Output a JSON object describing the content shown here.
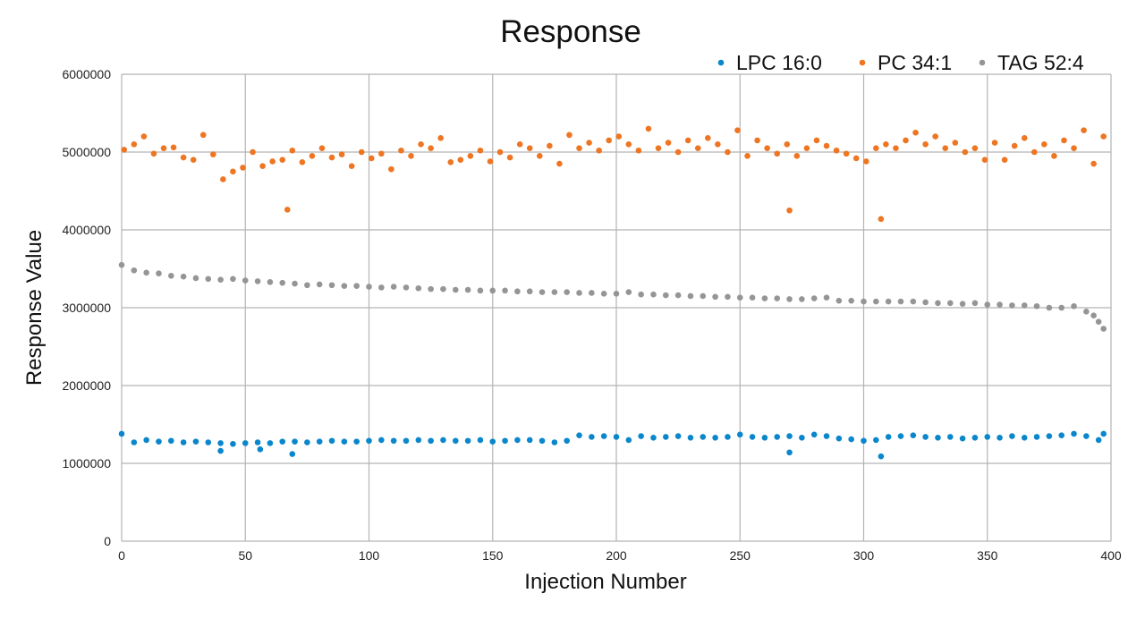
{
  "chart_data": {
    "type": "scatter",
    "title": "Response",
    "xlabel": "Injection Number",
    "ylabel": "Response Value",
    "xlim": [
      0,
      400
    ],
    "ylim": [
      0,
      6000000
    ],
    "xticks": [
      "0",
      "50",
      "100",
      "150",
      "200",
      "250",
      "300",
      "350",
      "400"
    ],
    "yticks": [
      "0",
      "1000000",
      "2000000",
      "3000000",
      "4000000",
      "5000000",
      "6000000"
    ],
    "grid": true,
    "legend_position": "top-right",
    "series": [
      {
        "name": "LPC 16:0",
        "color": "#0a87cc",
        "points": [
          [
            0,
            1380000.0
          ],
          [
            5,
            1270000.0
          ],
          [
            10,
            1300000.0
          ],
          [
            15,
            1280000.0
          ],
          [
            20,
            1290000.0
          ],
          [
            25,
            1270000.0
          ],
          [
            30,
            1280000.0
          ],
          [
            35,
            1270000.0
          ],
          [
            40,
            1260000.0
          ],
          [
            45,
            1250000.0
          ],
          [
            50,
            1260000.0
          ],
          [
            55,
            1270000.0
          ],
          [
            60,
            1260000.0
          ],
          [
            65,
            1280000.0
          ],
          [
            70,
            1280000.0
          ],
          [
            75,
            1270000.0
          ],
          [
            80,
            1280000.0
          ],
          [
            85,
            1290000.0
          ],
          [
            90,
            1280000.0
          ],
          [
            95,
            1280000.0
          ],
          [
            100,
            1290000.0
          ],
          [
            105,
            1300000.0
          ],
          [
            110,
            1290000.0
          ],
          [
            115,
            1290000.0
          ],
          [
            120,
            1300000.0
          ],
          [
            125,
            1290000.0
          ],
          [
            130,
            1300000.0
          ],
          [
            135,
            1290000.0
          ],
          [
            140,
            1290000.0
          ],
          [
            145,
            1300000.0
          ],
          [
            150,
            1280000.0
          ],
          [
            155,
            1290000.0
          ],
          [
            160,
            1300000.0
          ],
          [
            165,
            1300000.0
          ],
          [
            170,
            1290000.0
          ],
          [
            175,
            1270000.0
          ],
          [
            180,
            1290000.0
          ],
          [
            185,
            1360000.0
          ],
          [
            190,
            1340000.0
          ],
          [
            195,
            1350000.0
          ],
          [
            200,
            1340000.0
          ],
          [
            205,
            1300000.0
          ],
          [
            210,
            1350000.0
          ],
          [
            215,
            1330000.0
          ],
          [
            220,
            1340000.0
          ],
          [
            225,
            1350000.0
          ],
          [
            230,
            1330000.0
          ],
          [
            235,
            1340000.0
          ],
          [
            240,
            1330000.0
          ],
          [
            245,
            1340000.0
          ],
          [
            250,
            1370000.0
          ],
          [
            255,
            1340000.0
          ],
          [
            260,
            1330000.0
          ],
          [
            265,
            1340000.0
          ],
          [
            270,
            1350000.0
          ],
          [
            275,
            1330000.0
          ],
          [
            280,
            1370000.0
          ],
          [
            285,
            1350000.0
          ],
          [
            290,
            1320000.0
          ],
          [
            295,
            1310000.0
          ],
          [
            300,
            1290000.0
          ],
          [
            305,
            1300000.0
          ],
          [
            310,
            1340000.0
          ],
          [
            315,
            1350000.0
          ],
          [
            320,
            1360000.0
          ],
          [
            325,
            1340000.0
          ],
          [
            330,
            1330000.0
          ],
          [
            335,
            1340000.0
          ],
          [
            340,
            1320000.0
          ],
          [
            345,
            1330000.0
          ],
          [
            350,
            1340000.0
          ],
          [
            355,
            1330000.0
          ],
          [
            360,
            1350000.0
          ],
          [
            365,
            1330000.0
          ],
          [
            370,
            1340000.0
          ],
          [
            375,
            1350000.0
          ],
          [
            380,
            1360000.0
          ],
          [
            385,
            1380000.0
          ],
          [
            390,
            1350000.0
          ],
          [
            395,
            1300000.0
          ],
          [
            397,
            1380000.0
          ],
          [
            40,
            1160000.0
          ],
          [
            56,
            1180000.0
          ],
          [
            69,
            1120000.0
          ],
          [
            270,
            1140000.0
          ],
          [
            307,
            1090000.0
          ]
        ]
      },
      {
        "name": "PC 34:1",
        "color": "#ee7623",
        "points": [
          [
            1,
            5030000.0
          ],
          [
            5,
            5100000.0
          ],
          [
            9,
            5200000.0
          ],
          [
            13,
            4980000.0
          ],
          [
            17,
            5050000.0
          ],
          [
            21,
            5060000.0
          ],
          [
            25,
            4930000.0
          ],
          [
            29,
            4900000.0
          ],
          [
            33,
            5220000.0
          ],
          [
            37,
            4970000.0
          ],
          [
            41,
            4650000.0
          ],
          [
            45,
            4750000.0
          ],
          [
            49,
            4800000.0
          ],
          [
            53,
            5000000.0
          ],
          [
            57,
            4820000.0
          ],
          [
            61,
            4880000.0
          ],
          [
            65,
            4900000.0
          ],
          [
            69,
            5020000.0
          ],
          [
            73,
            4870000.0
          ],
          [
            77,
            4950000.0
          ],
          [
            81,
            5050000.0
          ],
          [
            85,
            4930000.0
          ],
          [
            89,
            4970000.0
          ],
          [
            93,
            4820000.0
          ],
          [
            97,
            5000000.0
          ],
          [
            101,
            4920000.0
          ],
          [
            105,
            4980000.0
          ],
          [
            109,
            4780000.0
          ],
          [
            113,
            5020000.0
          ],
          [
            117,
            4950000.0
          ],
          [
            121,
            5100000.0
          ],
          [
            125,
            5050000.0
          ],
          [
            129,
            5180000.0
          ],
          [
            133,
            4870000.0
          ],
          [
            137,
            4900000.0
          ],
          [
            141,
            4950000.0
          ],
          [
            145,
            5020000.0
          ],
          [
            149,
            4880000.0
          ],
          [
            153,
            5000000.0
          ],
          [
            157,
            4930000.0
          ],
          [
            161,
            5100000.0
          ],
          [
            165,
            5050000.0
          ],
          [
            169,
            4950000.0
          ],
          [
            173,
            5080000.0
          ],
          [
            177,
            4850000.0
          ],
          [
            181,
            5220000.0
          ],
          [
            185,
            5050000.0
          ],
          [
            189,
            5120000.0
          ],
          [
            193,
            5020000.0
          ],
          [
            197,
            5150000.0
          ],
          [
            201,
            5200000.0
          ],
          [
            205,
            5100000.0
          ],
          [
            209,
            5020000.0
          ],
          [
            213,
            5300000.0
          ],
          [
            217,
            5050000.0
          ],
          [
            221,
            5120000.0
          ],
          [
            225,
            5000000.0
          ],
          [
            229,
            5150000.0
          ],
          [
            233,
            5050000.0
          ],
          [
            237,
            5180000.0
          ],
          [
            241,
            5100000.0
          ],
          [
            245,
            5000000.0
          ],
          [
            249,
            5280000.0
          ],
          [
            253,
            4950000.0
          ],
          [
            257,
            5150000.0
          ],
          [
            261,
            5050000.0
          ],
          [
            265,
            4980000.0
          ],
          [
            269,
            5100000.0
          ],
          [
            273,
            4950000.0
          ],
          [
            277,
            5050000.0
          ],
          [
            281,
            5150000.0
          ],
          [
            285,
            5080000.0
          ],
          [
            289,
            5020000.0
          ],
          [
            293,
            4980000.0
          ],
          [
            297,
            4920000.0
          ],
          [
            301,
            4880000.0
          ],
          [
            305,
            5050000.0
          ],
          [
            309,
            5100000.0
          ],
          [
            313,
            5050000.0
          ],
          [
            317,
            5150000.0
          ],
          [
            321,
            5250000.0
          ],
          [
            325,
            5100000.0
          ],
          [
            329,
            5200000.0
          ],
          [
            333,
            5050000.0
          ],
          [
            337,
            5120000.0
          ],
          [
            341,
            5000000.0
          ],
          [
            345,
            5050000.0
          ],
          [
            349,
            4900000.0
          ],
          [
            353,
            5120000.0
          ],
          [
            357,
            4900000.0
          ],
          [
            361,
            5080000.0
          ],
          [
            365,
            5180000.0
          ],
          [
            369,
            5000000.0
          ],
          [
            373,
            5100000.0
          ],
          [
            377,
            4950000.0
          ],
          [
            381,
            5150000.0
          ],
          [
            385,
            5050000.0
          ],
          [
            389,
            5280000.0
          ],
          [
            393,
            4850000.0
          ],
          [
            397,
            5200000.0
          ],
          [
            67,
            4260000.0
          ],
          [
            270,
            4250000.0
          ],
          [
            307,
            4140000.0
          ]
        ]
      },
      {
        "name": "TAG 52:4",
        "color": "#959595",
        "points": [
          [
            0,
            3550000.0
          ],
          [
            5,
            3480000.0
          ],
          [
            10,
            3450000.0
          ],
          [
            15,
            3440000.0
          ],
          [
            20,
            3410000.0
          ],
          [
            25,
            3400000.0
          ],
          [
            30,
            3380000.0
          ],
          [
            35,
            3370000.0
          ],
          [
            40,
            3360000.0
          ],
          [
            45,
            3370000.0
          ],
          [
            50,
            3350000.0
          ],
          [
            55,
            3340000.0
          ],
          [
            60,
            3330000.0
          ],
          [
            65,
            3320000.0
          ],
          [
            70,
            3310000.0
          ],
          [
            75,
            3290000.0
          ],
          [
            80,
            3300000.0
          ],
          [
            85,
            3290000.0
          ],
          [
            90,
            3280000.0
          ],
          [
            95,
            3280000.0
          ],
          [
            100,
            3270000.0
          ],
          [
            105,
            3260000.0
          ],
          [
            110,
            3270000.0
          ],
          [
            115,
            3260000.0
          ],
          [
            120,
            3250000.0
          ],
          [
            125,
            3240000.0
          ],
          [
            130,
            3240000.0
          ],
          [
            135,
            3230000.0
          ],
          [
            140,
            3230000.0
          ],
          [
            145,
            3220000.0
          ],
          [
            150,
            3220000.0
          ],
          [
            155,
            3220000.0
          ],
          [
            160,
            3210000.0
          ],
          [
            165,
            3210000.0
          ],
          [
            170,
            3200000.0
          ],
          [
            175,
            3200000.0
          ],
          [
            180,
            3200000.0
          ],
          [
            185,
            3190000.0
          ],
          [
            190,
            3190000.0
          ],
          [
            195,
            3180000.0
          ],
          [
            200,
            3180000.0
          ],
          [
            205,
            3200000.0
          ],
          [
            210,
            3170000.0
          ],
          [
            215,
            3170000.0
          ],
          [
            220,
            3160000.0
          ],
          [
            225,
            3160000.0
          ],
          [
            230,
            3150000.0
          ],
          [
            235,
            3150000.0
          ],
          [
            240,
            3140000.0
          ],
          [
            245,
            3140000.0
          ],
          [
            250,
            3130000.0
          ],
          [
            255,
            3130000.0
          ],
          [
            260,
            3120000.0
          ],
          [
            265,
            3120000.0
          ],
          [
            270,
            3110000.0
          ],
          [
            275,
            3110000.0
          ],
          [
            280,
            3120000.0
          ],
          [
            285,
            3130000.0
          ],
          [
            290,
            3090000.0
          ],
          [
            295,
            3090000.0
          ],
          [
            300,
            3080000.0
          ],
          [
            305,
            3080000.0
          ],
          [
            310,
            3080000.0
          ],
          [
            315,
            3080000.0
          ],
          [
            320,
            3080000.0
          ],
          [
            325,
            3070000.0
          ],
          [
            330,
            3060000.0
          ],
          [
            335,
            3060000.0
          ],
          [
            340,
            3050000.0
          ],
          [
            345,
            3060000.0
          ],
          [
            350,
            3040000.0
          ],
          [
            355,
            3040000.0
          ],
          [
            360,
            3030000.0
          ],
          [
            365,
            3030000.0
          ],
          [
            370,
            3020000.0
          ],
          [
            375,
            3000000.0
          ],
          [
            380,
            3000000.0
          ],
          [
            385,
            3020000.0
          ],
          [
            390,
            2950000.0
          ],
          [
            393,
            2900000.0
          ],
          [
            395,
            2820000.0
          ],
          [
            397,
            2730000.0
          ]
        ]
      }
    ]
  }
}
